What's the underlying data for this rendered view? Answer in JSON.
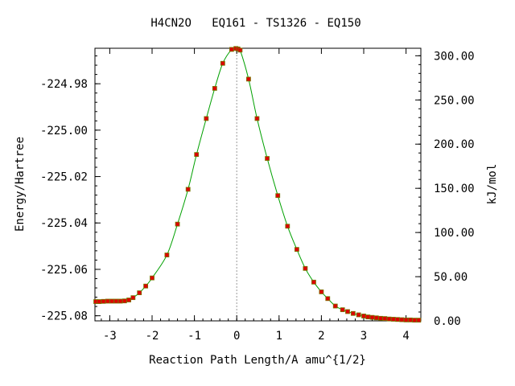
{
  "chart_data": {
    "type": "line",
    "title": "H4CN2O   EQ161 - TS1326 - EQ150",
    "xlabel": "Reaction Path Length/A amu^{1/2}",
    "ylabel": "Energy/Hartree",
    "ylabel_right": "kJ/mol",
    "xlim": [
      -3.35,
      4.35
    ],
    "ylim": [
      -225.0822,
      -224.9647
    ],
    "ylim_right": [
      0.0,
      308.5
    ],
    "x_ticks": [
      -3,
      -2,
      -1,
      0,
      1,
      2,
      3,
      4
    ],
    "x_tick_labels": [
      "-3",
      "-2",
      "-1",
      "0",
      "1",
      "2",
      "3",
      "4"
    ],
    "y_ticks": [
      -225.08,
      -225.06,
      -225.04,
      -225.02,
      -225.0,
      -224.98
    ],
    "y_tick_labels": [
      "-225.08",
      "-225.06",
      "-225.04",
      "-225.02",
      "-225.00",
      "-224.98"
    ],
    "y2_ticks": [
      0,
      50,
      100,
      150,
      200,
      250,
      300
    ],
    "y2_tick_labels": [
      "0.00",
      "50.00",
      "100.00",
      "150.00",
      "200.00",
      "250.00",
      "300.00"
    ],
    "ts_x": 0.0,
    "grid": false,
    "line_color": "#00a000",
    "marker_color": "#dd0000",
    "marker_edge_color": "#777700",
    "ts_line_color": "#999999",
    "series": [
      {
        "x": [
          -3.33,
          -3.25,
          -3.15,
          -3.05,
          -2.95,
          -2.85,
          -2.75,
          -2.65,
          -2.55,
          -2.45,
          -2.3,
          -2.15,
          -2.0,
          -1.65,
          -1.4,
          -1.15,
          -0.95,
          -0.72,
          -0.52,
          -0.33,
          -0.12,
          -0.02,
          0.03,
          0.08,
          0.28,
          0.48,
          0.72,
          0.97,
          1.2,
          1.42,
          1.62,
          1.82,
          2.0,
          2.15,
          2.33,
          2.5,
          2.62,
          2.75,
          2.88,
          3.0,
          3.1,
          3.2,
          3.3,
          3.4,
          3.5,
          3.6,
          3.7,
          3.8,
          3.9,
          4.0,
          4.1,
          4.2,
          4.3
        ],
        "y": [
          -225.0739,
          -225.0739,
          -225.0738,
          -225.0737,
          -225.0737,
          -225.0737,
          -225.0737,
          -225.0736,
          -225.0732,
          -225.0722,
          -225.0701,
          -225.0672,
          -225.0637,
          -225.0538,
          -225.0405,
          -225.0255,
          -225.0105,
          -224.995,
          -224.982,
          -224.9712,
          -224.9652,
          -224.9648,
          -224.965,
          -224.9655,
          -224.978,
          -224.995,
          -225.0122,
          -225.0282,
          -225.0414,
          -225.0514,
          -225.0596,
          -225.0655,
          -225.0697,
          -225.0726,
          -225.0758,
          -225.0774,
          -225.0782,
          -225.079,
          -225.0796,
          -225.0801,
          -225.0805,
          -225.0807,
          -225.0809,
          -225.0811,
          -225.0812,
          -225.0814,
          -225.0815,
          -225.0816,
          -225.0817,
          -225.0818,
          -225.0818,
          -225.0819,
          -225.0819
        ]
      }
    ]
  }
}
